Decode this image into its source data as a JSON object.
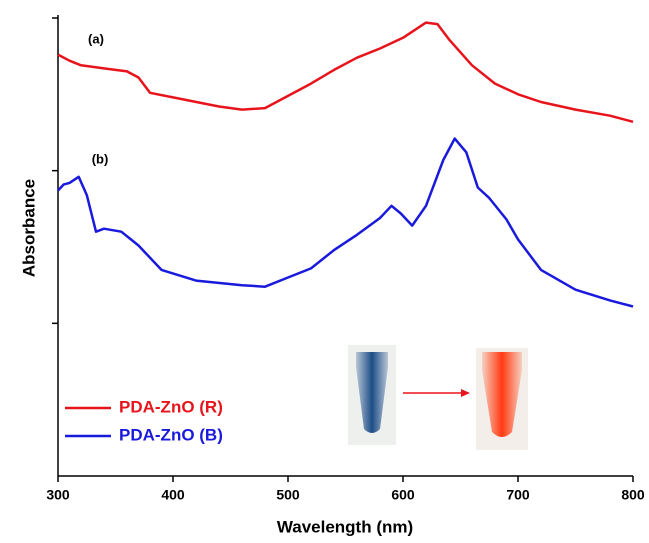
{
  "chart_data": {
    "type": "line",
    "x_label": "Wavelength (nm)",
    "y_label": "Absorbance",
    "annotations": [
      "(a)",
      "(b)"
    ],
    "xlim": [
      300,
      800
    ],
    "xticks": [
      300,
      400,
      500,
      600,
      700,
      800
    ],
    "ylim": [
      0,
      3
    ],
    "yticks": [
      1,
      2,
      3
    ],
    "legend": "lower left",
    "series": [
      {
        "name": "PDA-ZnO (R)",
        "color": "#e8141c",
        "x": [
          300,
          310,
          320,
          340,
          360,
          370,
          380,
          400,
          440,
          460,
          480,
          500,
          520,
          540,
          560,
          580,
          600,
          620,
          630,
          640,
          660,
          680,
          700,
          720,
          750,
          780,
          800
        ],
        "values": [
          2.76,
          2.72,
          2.69,
          2.67,
          2.65,
          2.61,
          2.51,
          2.48,
          2.42,
          2.4,
          2.41,
          2.49,
          2.57,
          2.66,
          2.74,
          2.8,
          2.87,
          2.97,
          2.96,
          2.86,
          2.69,
          2.57,
          2.5,
          2.45,
          2.4,
          2.36,
          2.32
        ]
      },
      {
        "name": "PDA-ZnO (B)",
        "color": "#1a1adc",
        "x": [
          300,
          305,
          310,
          318,
          325,
          333,
          340,
          355,
          370,
          390,
          420,
          460,
          480,
          500,
          520,
          540,
          560,
          580,
          590,
          598,
          608,
          620,
          635,
          645,
          655,
          665,
          675,
          690,
          700,
          720,
          750,
          780,
          800
        ],
        "values": [
          1.87,
          1.91,
          1.92,
          1.96,
          1.84,
          1.6,
          1.62,
          1.6,
          1.51,
          1.35,
          1.28,
          1.25,
          1.24,
          1.3,
          1.36,
          1.48,
          1.58,
          1.69,
          1.77,
          1.72,
          1.64,
          1.77,
          2.07,
          2.21,
          2.12,
          1.89,
          1.82,
          1.68,
          1.55,
          1.35,
          1.22,
          1.15,
          1.11
        ]
      }
    ]
  }
}
